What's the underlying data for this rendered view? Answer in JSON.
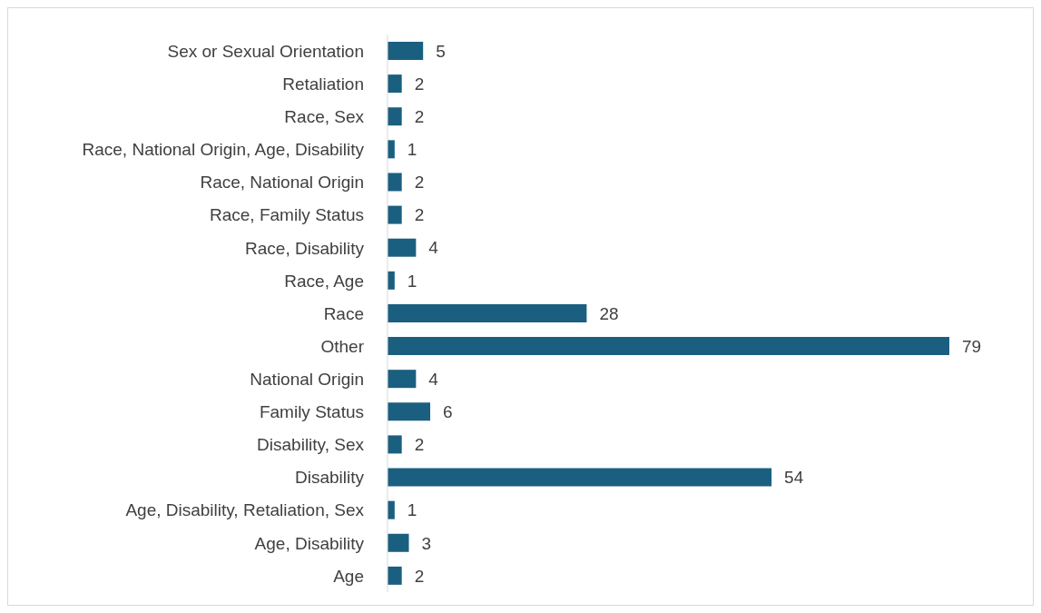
{
  "chart_data": {
    "type": "bar",
    "orientation": "horizontal",
    "data_labels": true,
    "grid": false,
    "legend": false,
    "categories": [
      "Sex or Sexual Orientation",
      "Retaliation",
      "Race, Sex",
      "Race, National Origin, Age, Disability",
      "Race, National Origin",
      "Race, Family Status",
      "Race, Disability",
      "Race, Age",
      "Race",
      "Other",
      "National Origin",
      "Family Status",
      "Disability, Sex",
      "Disability",
      "Age, Disability, Retaliation, Sex",
      "Age, Disability",
      "Age"
    ],
    "values": [
      5,
      2,
      2,
      1,
      2,
      2,
      4,
      1,
      28,
      79,
      4,
      6,
      2,
      54,
      1,
      3,
      2
    ],
    "color": "#1b5f80"
  }
}
